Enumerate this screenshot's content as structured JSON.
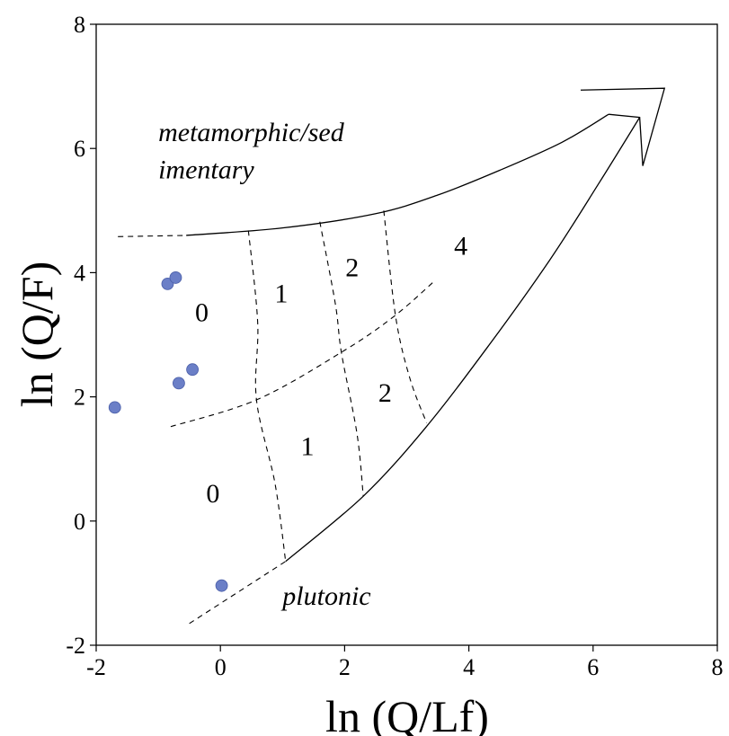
{
  "chart_data": {
    "type": "scatter",
    "xlabel": "ln (Q/Lf)",
    "ylabel": "ln (Q/F)",
    "xlim": [
      -2,
      8
    ],
    "ylim": [
      -2,
      8
    ],
    "x_ticks": [
      -2,
      0,
      2,
      4,
      6,
      8
    ],
    "y_ticks": [
      -2,
      0,
      2,
      4,
      6,
      8
    ],
    "grid": false,
    "point_color": "#6b7fc7",
    "points": [
      {
        "x": -1.7,
        "y": 1.83
      },
      {
        "x": -0.85,
        "y": 3.82
      },
      {
        "x": -0.72,
        "y": 3.92
      },
      {
        "x": -0.45,
        "y": 2.44
      },
      {
        "x": -0.67,
        "y": 2.22
      },
      {
        "x": 0.02,
        "y": -1.04
      }
    ],
    "region_labels": [
      {
        "text": "0",
        "x": -0.3,
        "y": 3.22
      },
      {
        "text": "1",
        "x": 0.98,
        "y": 3.52
      },
      {
        "text": "2",
        "x": 2.12,
        "y": 3.94
      },
      {
        "text": "4",
        "x": 3.87,
        "y": 4.29
      },
      {
        "text": "2",
        "x": 2.65,
        "y": 1.92
      },
      {
        "text": "1",
        "x": 1.4,
        "y": 1.06
      },
      {
        "text": "0",
        "x": -0.12,
        "y": 0.3
      }
    ],
    "annotations": [
      {
        "text": "metamorphic/sed",
        "x": -1.0,
        "y": 6.12
      },
      {
        "text": "imentary",
        "x": -1.0,
        "y": 5.52
      },
      {
        "text": "plutonic",
        "x": 1.0,
        "y": -1.35
      }
    ],
    "boundaries": {
      "upper_solid": [
        [
          -0.55,
          4.6
        ],
        [
          1.0,
          4.72
        ],
        [
          2.5,
          4.95
        ],
        [
          3.5,
          5.25
        ],
        [
          4.5,
          5.65
        ],
        [
          5.5,
          6.1
        ],
        [
          6.25,
          6.55
        ]
      ],
      "upper_dashed": [
        [
          -1.65,
          4.58
        ],
        [
          -0.55,
          4.6
        ]
      ],
      "lower_solid": [
        [
          1.05,
          -0.65
        ],
        [
          2.3,
          0.4
        ],
        [
          3.3,
          1.5
        ],
        [
          4.3,
          2.8
        ],
        [
          5.3,
          4.2
        ],
        [
          6.1,
          5.45
        ],
        [
          6.75,
          6.5
        ]
      ],
      "lower_dashed": [
        [
          -0.5,
          -1.65
        ],
        [
          1.05,
          -0.65
        ]
      ],
      "arrow_head": [
        [
          5.8,
          6.94
        ],
        [
          7.15,
          6.97
        ],
        [
          6.8,
          5.72
        ],
        [
          6.75,
          6.5
        ],
        [
          6.25,
          6.55
        ]
      ],
      "middle_dashed": [
        [
          -0.8,
          1.52
        ],
        [
          0.6,
          1.96
        ],
        [
          2.0,
          2.75
        ],
        [
          2.8,
          3.3
        ],
        [
          3.43,
          3.85
        ]
      ],
      "vertical_dashed": [
        [
          [
            0.45,
            4.68
          ],
          [
            0.6,
            3.2
          ],
          [
            0.58,
            1.96
          ],
          [
            0.88,
            0.6
          ],
          [
            1.05,
            -0.65
          ]
        ],
        [
          [
            1.6,
            4.82
          ],
          [
            1.85,
            3.5
          ],
          [
            1.95,
            2.7
          ],
          [
            2.2,
            1.4
          ],
          [
            2.3,
            0.4
          ]
        ],
        [
          [
            2.63,
            5.0
          ],
          [
            2.82,
            3.3
          ],
          [
            3.05,
            2.3
          ],
          [
            3.32,
            1.58
          ]
        ]
      ]
    }
  }
}
